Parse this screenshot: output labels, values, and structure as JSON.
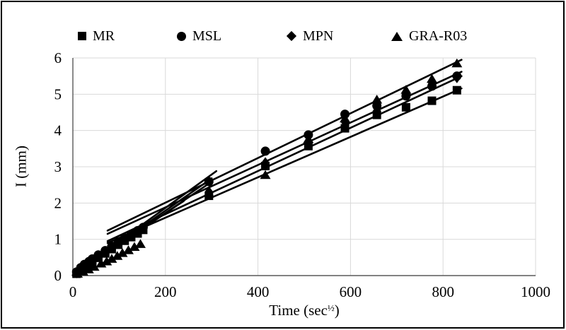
{
  "figure": {
    "background": "#ffffff",
    "border_color": "#000000",
    "gridline_color": "#d9d9d9",
    "axis_color": "#595959",
    "marker_color": "#000000",
    "trendline_color": "#000000"
  },
  "legend": {
    "items": [
      {
        "label": "MR",
        "marker": "square-icon"
      },
      {
        "label": "MSL",
        "marker": "circle-icon"
      },
      {
        "label": "MPN",
        "marker": "diamond-icon"
      },
      {
        "label": "GRA-R03",
        "marker": "triangle-icon"
      }
    ]
  },
  "axes": {
    "ylabel": "I (mm)",
    "xlabel_parts": {
      "prefix": "Time (sec",
      "sup": "½",
      "suffix": ")"
    }
  },
  "chart_data": {
    "type": "scatter",
    "title": "",
    "xlabel": "Time (sec½)",
    "ylabel": "I (mm)",
    "xlim": [
      0,
      1000
    ],
    "ylim": [
      0,
      6
    ],
    "xticks": [
      0,
      200,
      400,
      600,
      800,
      1000
    ],
    "yticks": [
      0,
      1,
      2,
      3,
      4,
      5,
      6
    ],
    "grid": true,
    "legend_position": "top",
    "series": [
      {
        "name": "MR",
        "marker": "square",
        "points": [
          [
            8,
            0.05
          ],
          [
            17,
            0.16
          ],
          [
            25,
            0.24
          ],
          [
            35,
            0.32
          ],
          [
            42,
            0.39
          ],
          [
            55,
            0.49
          ],
          [
            70,
            0.61
          ],
          [
            84,
            0.73
          ],
          [
            98,
            0.85
          ],
          [
            112,
            0.96
          ],
          [
            126,
            1.06
          ],
          [
            140,
            1.16
          ],
          [
            152,
            1.26
          ],
          [
            294,
            2.2
          ],
          [
            416,
            3.02
          ],
          [
            509,
            3.57
          ],
          [
            588,
            4.06
          ],
          [
            657,
            4.43
          ],
          [
            720,
            4.64
          ],
          [
            776,
            4.82
          ],
          [
            830,
            5.11
          ]
        ]
      },
      {
        "name": "MSL",
        "marker": "circle",
        "points": [
          [
            8,
            0.1
          ],
          [
            17,
            0.22
          ],
          [
            25,
            0.31
          ],
          [
            35,
            0.39
          ],
          [
            42,
            0.46
          ],
          [
            55,
            0.57
          ],
          [
            70,
            0.69
          ],
          [
            84,
            0.81
          ],
          [
            98,
            0.93
          ],
          [
            112,
            1.04
          ],
          [
            126,
            1.14
          ],
          [
            140,
            1.24
          ],
          [
            152,
            1.33
          ],
          [
            294,
            2.59
          ],
          [
            416,
            3.43
          ],
          [
            509,
            3.88
          ],
          [
            588,
            4.45
          ],
          [
            657,
            4.68
          ],
          [
            720,
            4.95
          ],
          [
            776,
            5.22
          ],
          [
            830,
            5.5
          ]
        ]
      },
      {
        "name": "MPN",
        "marker": "diamond",
        "points": [
          [
            8,
            0.07
          ],
          [
            17,
            0.19
          ],
          [
            25,
            0.28
          ],
          [
            35,
            0.36
          ],
          [
            42,
            0.43
          ],
          [
            55,
            0.53
          ],
          [
            70,
            0.65
          ],
          [
            84,
            0.77
          ],
          [
            98,
            0.89
          ],
          [
            112,
            1.0
          ],
          [
            126,
            1.1
          ],
          [
            140,
            1.2
          ],
          [
            152,
            1.3
          ],
          [
            294,
            2.32
          ],
          [
            416,
            3.12
          ],
          [
            509,
            3.68
          ],
          [
            588,
            4.22
          ],
          [
            657,
            4.55
          ],
          [
            720,
            5.0
          ],
          [
            776,
            5.3
          ],
          [
            830,
            5.45
          ]
        ]
      },
      {
        "name": "GRA-R03",
        "marker": "triangle",
        "points": [
          [
            10,
            0.05
          ],
          [
            22,
            0.11
          ],
          [
            34,
            0.17
          ],
          [
            46,
            0.24
          ],
          [
            61,
            0.33
          ],
          [
            73,
            0.39
          ],
          [
            84,
            0.46
          ],
          [
            96,
            0.54
          ],
          [
            107,
            0.62
          ],
          [
            120,
            0.7
          ],
          [
            133,
            0.79
          ],
          [
            146,
            0.87
          ],
          [
            294,
            2.28
          ],
          [
            416,
            2.77
          ],
          [
            509,
            3.76
          ],
          [
            588,
            4.33
          ],
          [
            657,
            4.85
          ],
          [
            720,
            5.12
          ],
          [
            776,
            5.42
          ],
          [
            830,
            5.85
          ]
        ]
      }
    ],
    "trendlines": [
      {
        "series": "MR",
        "kind": "secondary",
        "from": [
          75,
          0.9
        ],
        "to": [
          840,
          5.16
        ]
      },
      {
        "series": "MPN",
        "kind": "secondary",
        "from": [
          75,
          0.95
        ],
        "to": [
          840,
          5.5
        ]
      },
      {
        "series": "MSL",
        "kind": "secondary",
        "from": [
          75,
          1.15
        ],
        "to": [
          840,
          5.62
        ]
      },
      {
        "series": "GRA-R03",
        "kind": "secondary",
        "from": [
          75,
          1.24
        ],
        "to": [
          840,
          5.95
        ]
      },
      {
        "series": "MR",
        "kind": "initial",
        "from": [
          0,
          0.0
        ],
        "to": [
          292,
          2.52
        ]
      },
      {
        "series": "MSL",
        "kind": "initial",
        "from": [
          0,
          0.02
        ],
        "to": [
          310,
          2.88
        ]
      },
      {
        "series": "MPN",
        "kind": "initial",
        "from": [
          0,
          0.01
        ],
        "to": [
          300,
          2.68
        ]
      },
      {
        "series": "GRA-R03",
        "kind": "initial",
        "from": [
          0,
          0.0
        ],
        "to": [
          240,
          2.06
        ]
      }
    ]
  }
}
